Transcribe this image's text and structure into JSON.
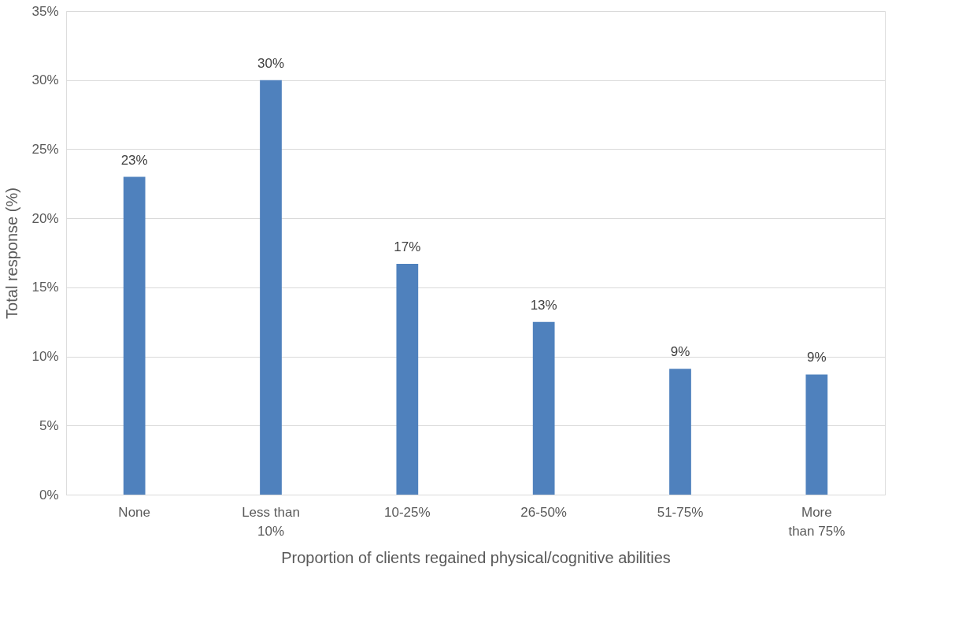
{
  "chart_data": {
    "type": "bar",
    "xlabel": "Proportion of clients regained physical/cognitive abilities",
    "ylabel": "Total response (%)",
    "categories": [
      "None",
      "Less than\n10%",
      "10-25%",
      "26-50%",
      "51-75%",
      "More\nthan 75%"
    ],
    "values": [
      23,
      30,
      16.7,
      12.5,
      9.1,
      8.7
    ],
    "value_labels": [
      "23%",
      "30%",
      "17%",
      "13%",
      "9%",
      "9%"
    ],
    "color": "#4f81bd",
    "ylim": [
      0,
      35
    ],
    "yticks": [
      {
        "value": 0,
        "label": "0%"
      },
      {
        "value": 5,
        "label": "5%"
      },
      {
        "value": 10,
        "label": "10%"
      },
      {
        "value": 15,
        "label": "15%"
      },
      {
        "value": 20,
        "label": "20%"
      },
      {
        "value": 25,
        "label": "25%"
      },
      {
        "value": 30,
        "label": "30%"
      },
      {
        "value": 35,
        "label": "35%"
      }
    ],
    "grid": "y"
  }
}
